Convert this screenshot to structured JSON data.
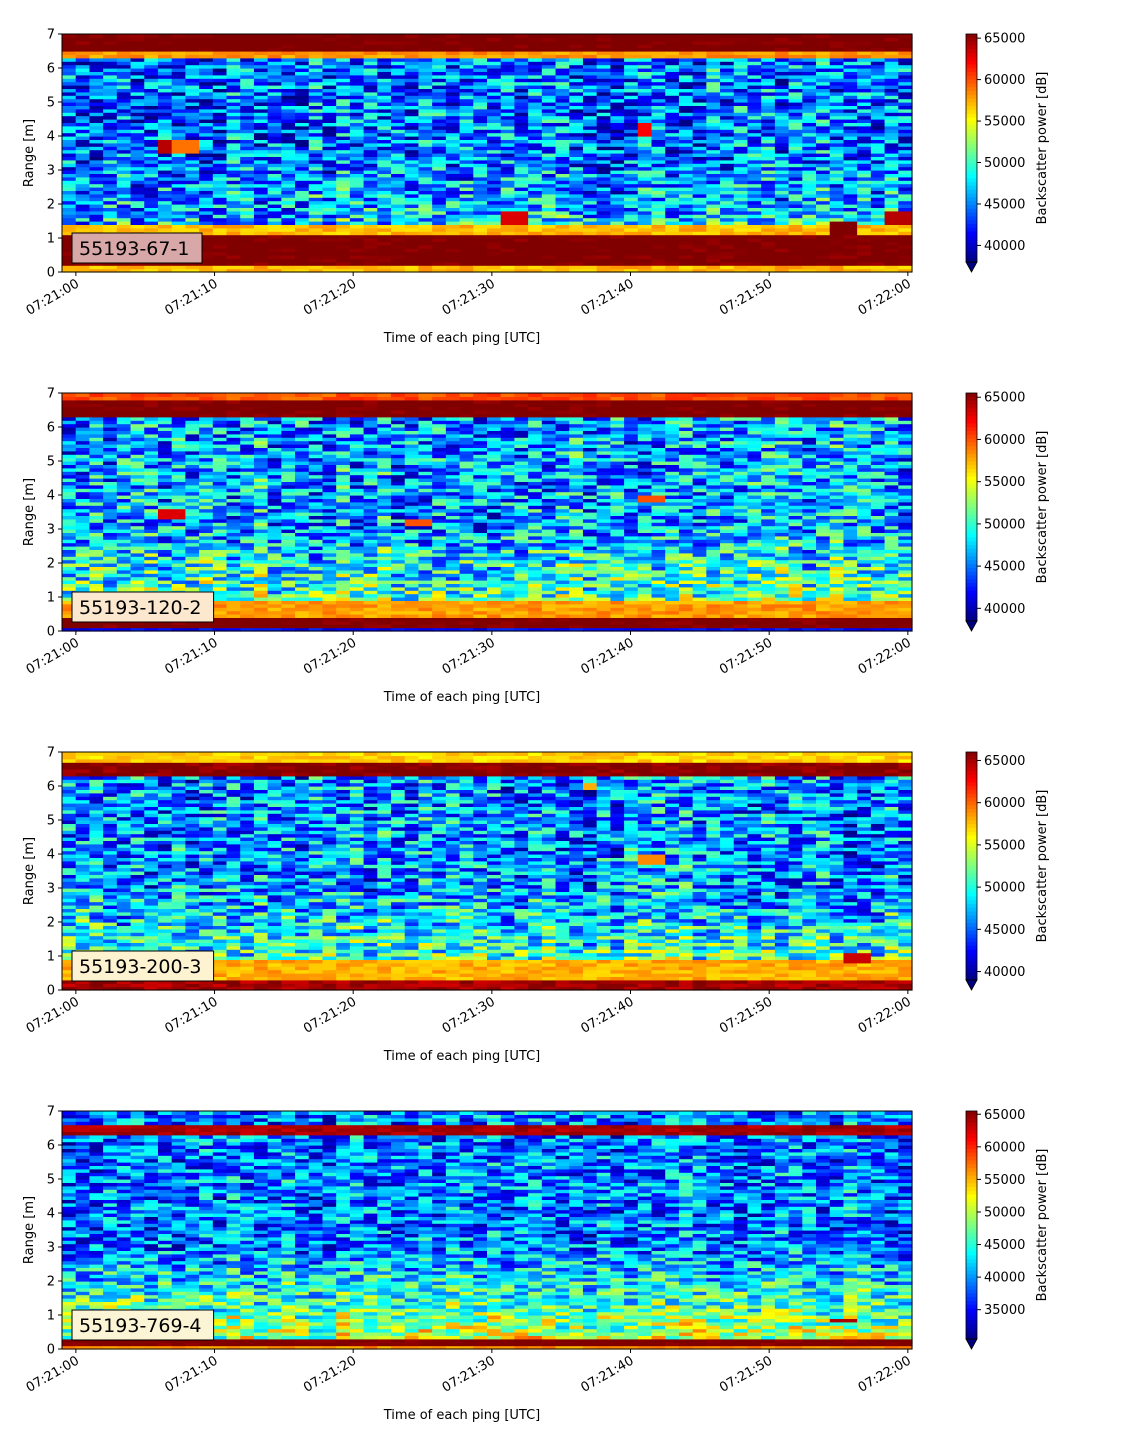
{
  "figure": {
    "background": "#ffffff"
  },
  "chart_data": [
    {
      "type": "heatmap",
      "label_box": {
        "text": "55193-67-1",
        "color": "#d8a8a8"
      },
      "xlabel": "Time of each ping [UTC]",
      "ylabel": "Range [m]",
      "xticks": [
        "07:21:00",
        "07:21:10",
        "07:21:20",
        "07:21:30",
        "07:21:40",
        "07:21:50",
        "07:22:00"
      ],
      "xlim_seconds": [
        -1,
        60.3
      ],
      "ylim": [
        0,
        7
      ],
      "yticks": [
        0,
        1,
        2,
        3,
        4,
        5,
        6,
        7
      ],
      "colormap": "jet",
      "colorbar": {
        "label": "Backscatter power [dB]",
        "min": 38000,
        "max": 65500,
        "ticks": [
          40000,
          45000,
          50000,
          55000,
          60000,
          65000
        ],
        "extend": "min"
      },
      "profile": {
        "bands": [
          {
            "from": 0,
            "to": 0.25,
            "value": 57000
          },
          {
            "from": 0.25,
            "to": 1.1,
            "value": 66000
          },
          {
            "from": 1.1,
            "to": 1.4,
            "value": 57000
          },
          {
            "from": 6.45,
            "to": 7,
            "value": 66000
          },
          {
            "from": 6.3,
            "to": 6.45,
            "value": 58000
          }
        ],
        "interior_base": 44500,
        "interior_noise": 6000,
        "bottom_gradient": 4000
      },
      "hotspots": [
        {
          "t": 6.5,
          "r_from": 3.5,
          "r_to": 3.95,
          "value": 64000
        },
        {
          "t": 8,
          "r_from": 3.55,
          "r_to": 3.9,
          "value": 59000
        },
        {
          "t": 31.8,
          "r_from": 1.4,
          "r_to": 1.8,
          "value": 63000
        },
        {
          "t": 41,
          "r_from": 4.0,
          "r_to": 4.4,
          "value": 62000
        },
        {
          "t": 55,
          "r_from": 1.05,
          "r_to": 1.55,
          "value": 66000
        },
        {
          "t": 59.3,
          "r_from": 1.4,
          "r_to": 1.8,
          "value": 64000
        }
      ],
      "seed": 11
    },
    {
      "type": "heatmap",
      "label_box": {
        "text": "55193-120-2",
        "color": "#fbe8cf"
      },
      "xlabel": "Time of each ping [UTC]",
      "ylabel": "Range [m]",
      "xticks": [
        "07:21:00",
        "07:21:10",
        "07:21:20",
        "07:21:30",
        "07:21:40",
        "07:21:50",
        "07:22:00"
      ],
      "xlim_seconds": [
        -1,
        60.3
      ],
      "ylim": [
        0,
        7
      ],
      "yticks": [
        0,
        1,
        2,
        3,
        4,
        5,
        6,
        7
      ],
      "colormap": "jet",
      "colorbar": {
        "label": "Backscatter power [dB]",
        "min": 38500,
        "max": 65500,
        "ticks": [
          40000,
          45000,
          50000,
          55000,
          60000,
          65000
        ],
        "extend": "min"
      },
      "profile": {
        "bands": [
          {
            "from": 0,
            "to": 0.1,
            "value": 42000
          },
          {
            "from": 0.1,
            "to": 0.45,
            "value": 66000
          },
          {
            "from": 0.45,
            "to": 0.9,
            "value": 58000
          },
          {
            "from": 6.25,
            "to": 6.75,
            "value": 66000
          },
          {
            "from": 6.75,
            "to": 7,
            "value": 60000
          }
        ],
        "interior_base": 46500,
        "interior_noise": 6000,
        "bottom_gradient": 5000
      },
      "hotspots": [
        {
          "t": 7,
          "r_from": 3.3,
          "r_to": 3.6,
          "value": 63000
        },
        {
          "t": 25,
          "r_from": 3.1,
          "r_to": 3.35,
          "value": 60000
        },
        {
          "t": 41.5,
          "r_from": 3.8,
          "r_to": 4.0,
          "value": 60000
        }
      ],
      "seed": 23
    },
    {
      "type": "heatmap",
      "label_box": {
        "text": "55193-200-3",
        "color": "#fdf3d0"
      },
      "xlabel": "Time of each ping [UTC]",
      "ylabel": "Range [m]",
      "xticks": [
        "07:21:00",
        "07:21:10",
        "07:21:20",
        "07:21:30",
        "07:21:40",
        "07:21:50",
        "07:22:00"
      ],
      "xlim_seconds": [
        -1,
        60.3
      ],
      "ylim": [
        0,
        7
      ],
      "yticks": [
        0,
        1,
        2,
        3,
        4,
        5,
        6,
        7
      ],
      "colormap": "jet",
      "colorbar": {
        "label": "Backscatter power [dB]",
        "min": 39000,
        "max": 66000,
        "ticks": [
          40000,
          45000,
          50000,
          55000,
          60000,
          65000
        ],
        "extend": "min"
      },
      "profile": {
        "bands": [
          {
            "from": 0,
            "to": 0.35,
            "value": 65000
          },
          {
            "from": 0.35,
            "to": 0.9,
            "value": 58000
          },
          {
            "from": 6.3,
            "to": 6.65,
            "value": 66000
          },
          {
            "from": 6.65,
            "to": 7,
            "value": 57000
          }
        ],
        "interior_base": 46000,
        "interior_noise": 6000,
        "bottom_gradient": 5000
      },
      "hotspots": [
        {
          "t": 41.5,
          "r_from": 3.75,
          "r_to": 4.0,
          "value": 59000
        },
        {
          "t": 56,
          "r_from": 0.85,
          "r_to": 1.05,
          "value": 64000
        },
        {
          "t": 37,
          "r_from": 5.9,
          "r_to": 6.1,
          "value": 58000
        }
      ],
      "seed": 37
    },
    {
      "type": "heatmap",
      "label_box": {
        "text": "55193-769-4",
        "color": "#fbf5d5"
      },
      "xlabel": "Time of each ping [UTC]",
      "ylabel": "Range [m]",
      "xticks": [
        "07:21:00",
        "07:21:10",
        "07:21:20",
        "07:21:30",
        "07:21:40",
        "07:21:50",
        "07:22:00"
      ],
      "xlim_seconds": [
        -1,
        60.3
      ],
      "ylim": [
        0,
        7
      ],
      "yticks": [
        0,
        1,
        2,
        3,
        4,
        5,
        6,
        7
      ],
      "colormap": "jet",
      "colorbar": {
        "label": "Backscatter power [dB]",
        "min": 30500,
        "max": 65500,
        "ticks": [
          35000,
          40000,
          45000,
          50000,
          55000,
          60000,
          65000
        ],
        "extend": "min"
      },
      "profile": {
        "bands": [
          {
            "from": 0,
            "to": 0.15,
            "value": 56000
          },
          {
            "from": 0.15,
            "to": 0.35,
            "value": 66000
          },
          {
            "from": 6.3,
            "to": 6.55,
            "value": 64000
          }
        ],
        "interior_base": 39000,
        "interior_noise": 7000,
        "bottom_gradient": 9000
      },
      "hotspots": [
        {
          "t": 55.5,
          "r_from": 0.85,
          "r_to": 0.95,
          "value": 64000
        }
      ],
      "seed": 53
    }
  ]
}
